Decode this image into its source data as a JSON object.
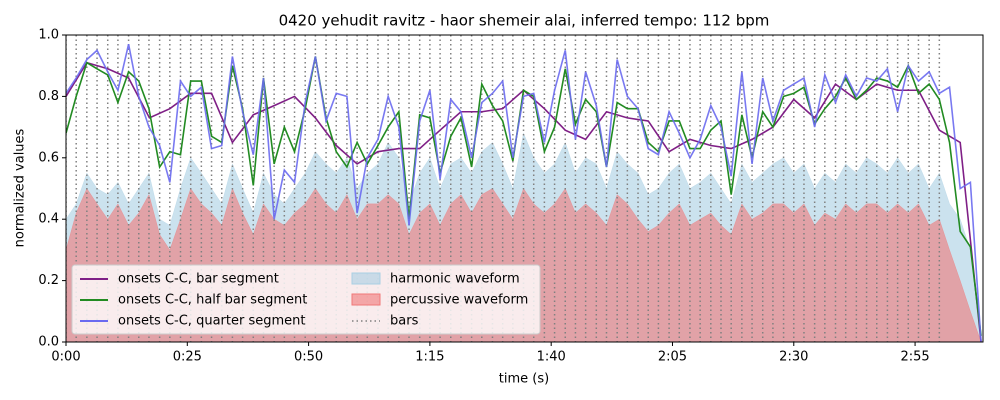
{
  "chart_data": {
    "type": "line",
    "title": "0420 yehudit ravitz - haor shemeir alai, inferred tempo: 112 bpm",
    "xlabel": "time (s)",
    "ylabel": "normalized values",
    "xlim": [
      0,
      189
    ],
    "ylim": [
      0,
      1
    ],
    "xticks": [
      {
        "value": 0,
        "label": "0:00"
      },
      {
        "value": 25,
        "label": "0:25"
      },
      {
        "value": 50,
        "label": "0:50"
      },
      {
        "value": 75,
        "label": "1:15"
      },
      {
        "value": 100,
        "label": "1:40"
      },
      {
        "value": 125,
        "label": "2:05"
      },
      {
        "value": 150,
        "label": "2:30"
      },
      {
        "value": 175,
        "label": "2:55"
      }
    ],
    "yticks": [
      {
        "value": 0,
        "label": "0.0"
      },
      0.2,
      0.4,
      0.6,
      0.8,
      {
        "value": 1,
        "label": "1.0"
      }
    ],
    "legend": "lower left",
    "series": [
      {
        "name": "onsets C-C, bar segment",
        "kind": "line",
        "color": "#7f1f86",
        "x": [
          0,
          4.3,
          8.6,
          12.9,
          17.2,
          21.4,
          25.7,
          30,
          34.3,
          38.6,
          42.9,
          47.1,
          51.4,
          55.7,
          60,
          64.3,
          68.6,
          72.9,
          77.1,
          81.4,
          85.7,
          90,
          94.3,
          98.6,
          102.9,
          107.1,
          111.4,
          115.7,
          120,
          124.3,
          128.6,
          132.9,
          137.1,
          141.4,
          145.7,
          150,
          154.3,
          158.6,
          162.9,
          167.1,
          171.4,
          175.7,
          180,
          184.3,
          188.6
        ],
        "values": [
          0.8,
          0.91,
          0.89,
          0.86,
          0.73,
          0.76,
          0.81,
          0.81,
          0.65,
          0.74,
          0.77,
          0.8,
          0.73,
          0.64,
          0.58,
          0.62,
          0.63,
          0.63,
          0.69,
          0.75,
          0.75,
          0.76,
          0.82,
          0.76,
          0.69,
          0.66,
          0.75,
          0.73,
          0.72,
          0.62,
          0.66,
          0.64,
          0.63,
          0.66,
          0.7,
          0.79,
          0.73,
          0.84,
          0.79,
          0.84,
          0.82,
          0.82,
          0.69,
          0.65,
          0.0
        ]
      },
      {
        "name": "onsets C-C, half bar segment",
        "kind": "line",
        "color": "#228b22",
        "x": [
          0,
          2.1,
          4.3,
          6.4,
          8.6,
          10.7,
          12.9,
          15,
          17.1,
          19.3,
          21.4,
          23.6,
          25.7,
          27.9,
          30,
          32.1,
          34.3,
          36.4,
          38.6,
          40.7,
          42.9,
          45,
          47.1,
          49.3,
          51.4,
          53.6,
          55.7,
          57.9,
          60,
          62.1,
          64.3,
          66.4,
          68.6,
          70.7,
          72.9,
          75,
          77.1,
          79.3,
          81.4,
          83.6,
          85.7,
          87.9,
          90,
          92.1,
          94.3,
          96.4,
          98.6,
          100.7,
          102.9,
          105,
          107.1,
          109.3,
          111.4,
          113.6,
          115.7,
          117.9,
          120,
          122.1,
          124.3,
          126.4,
          128.6,
          130.7,
          132.9,
          135,
          137.1,
          139.3,
          141.4,
          143.6,
          145.7,
          147.9,
          150,
          152.1,
          154.3,
          156.4,
          158.6,
          160.7,
          162.9,
          165,
          167.1,
          169.3,
          171.4,
          173.6,
          175.7,
          177.9,
          180,
          182.1,
          184.3,
          186.4,
          188.6
        ],
        "values": [
          0.68,
          0.8,
          0.91,
          0.89,
          0.87,
          0.78,
          0.88,
          0.85,
          0.76,
          0.57,
          0.62,
          0.61,
          0.85,
          0.85,
          0.67,
          0.65,
          0.9,
          0.76,
          0.51,
          0.86,
          0.58,
          0.7,
          0.62,
          0.76,
          0.93,
          0.73,
          0.62,
          0.57,
          0.65,
          0.58,
          0.64,
          0.7,
          0.75,
          0.4,
          0.74,
          0.73,
          0.55,
          0.67,
          0.73,
          0.57,
          0.84,
          0.77,
          0.72,
          0.59,
          0.82,
          0.8,
          0.62,
          0.7,
          0.89,
          0.71,
          0.79,
          0.75,
          0.57,
          0.78,
          0.76,
          0.76,
          0.65,
          0.62,
          0.72,
          0.72,
          0.63,
          0.63,
          0.69,
          0.72,
          0.48,
          0.74,
          0.6,
          0.75,
          0.7,
          0.8,
          0.81,
          0.83,
          0.71,
          0.76,
          0.8,
          0.86,
          0.79,
          0.82,
          0.86,
          0.85,
          0.83,
          0.9,
          0.81,
          0.84,
          0.79,
          0.65,
          0.36,
          0.31,
          0.02
        ]
      },
      {
        "name": "onsets C-C, quarter segment",
        "kind": "line",
        "color": "#6a6af0",
        "x": [
          0,
          2.1,
          4.3,
          6.4,
          8.6,
          10.7,
          12.9,
          15,
          17.1,
          19.3,
          21.4,
          23.6,
          25.7,
          27.9,
          30,
          32.1,
          34.3,
          36.4,
          38.6,
          40.7,
          42.9,
          45,
          47.1,
          49.3,
          51.4,
          53.6,
          55.7,
          57.9,
          60,
          62.1,
          64.3,
          66.4,
          68.6,
          70.7,
          72.9,
          75,
          77.1,
          79.3,
          81.4,
          83.6,
          85.7,
          87.9,
          90,
          92.1,
          94.3,
          96.4,
          98.6,
          100.7,
          102.9,
          105,
          107.1,
          109.3,
          111.4,
          113.6,
          115.7,
          117.9,
          120,
          122.1,
          124.3,
          126.4,
          128.6,
          130.7,
          132.9,
          135,
          137.1,
          139.3,
          141.4,
          143.6,
          145.7,
          147.9,
          150,
          152.1,
          154.3,
          156.4,
          158.6,
          160.7,
          162.9,
          165,
          167.1,
          169.3,
          171.4,
          173.6,
          175.7,
          177.9,
          180,
          182.1,
          184.3,
          186.4,
          188.6
        ],
        "values": [
          0.81,
          0.86,
          0.92,
          0.95,
          0.88,
          0.82,
          0.97,
          0.8,
          0.7,
          0.64,
          0.52,
          0.85,
          0.8,
          0.83,
          0.63,
          0.64,
          0.93,
          0.75,
          0.61,
          0.86,
          0.4,
          0.56,
          0.52,
          0.78,
          0.93,
          0.72,
          0.81,
          0.8,
          0.42,
          0.6,
          0.66,
          0.8,
          0.7,
          0.38,
          0.72,
          0.82,
          0.53,
          0.79,
          0.75,
          0.6,
          0.78,
          0.81,
          0.85,
          0.6,
          0.8,
          0.81,
          0.65,
          0.82,
          0.95,
          0.66,
          0.88,
          0.77,
          0.57,
          0.92,
          0.8,
          0.76,
          0.63,
          0.61,
          0.75,
          0.68,
          0.6,
          0.66,
          0.77,
          0.7,
          0.54,
          0.88,
          0.58,
          0.86,
          0.72,
          0.82,
          0.84,
          0.86,
          0.7,
          0.87,
          0.78,
          0.87,
          0.8,
          0.86,
          0.85,
          0.89,
          0.75,
          0.9,
          0.85,
          0.88,
          0.81,
          0.83,
          0.5,
          0.52,
          0.0
        ]
      },
      {
        "name": "harmonic waveform",
        "kind": "area",
        "color": "#a9cfe3",
        "x": [
          0,
          2.1,
          4.3,
          6.4,
          8.6,
          10.7,
          12.9,
          15,
          17.1,
          19.3,
          21.4,
          23.6,
          25.7,
          27.9,
          30,
          32.1,
          34.3,
          36.4,
          38.6,
          40.7,
          42.9,
          45,
          47.1,
          49.3,
          51.4,
          53.6,
          55.7,
          57.9,
          60,
          62.1,
          64.3,
          66.4,
          68.6,
          70.7,
          72.9,
          75,
          77.1,
          79.3,
          81.4,
          83.6,
          85.7,
          87.9,
          90,
          92.1,
          94.3,
          96.4,
          98.6,
          100.7,
          102.9,
          105,
          107.1,
          109.3,
          111.4,
          113.6,
          115.7,
          117.9,
          120,
          122.1,
          124.3,
          126.4,
          128.6,
          130.7,
          132.9,
          135,
          137.1,
          139.3,
          141.4,
          143.6,
          145.7,
          147.9,
          150,
          152.1,
          154.3,
          156.4,
          158.6,
          160.7,
          162.9,
          165,
          167.1,
          169.3,
          171.4,
          173.6,
          175.7,
          177.9,
          180,
          182.1,
          184.3,
          186.4,
          188.6
        ],
        "values": [
          0.4,
          0.45,
          0.55,
          0.5,
          0.48,
          0.52,
          0.45,
          0.5,
          0.55,
          0.4,
          0.38,
          0.5,
          0.6,
          0.55,
          0.5,
          0.45,
          0.58,
          0.5,
          0.42,
          0.55,
          0.48,
          0.45,
          0.5,
          0.55,
          0.62,
          0.58,
          0.55,
          0.6,
          0.5,
          0.55,
          0.58,
          0.65,
          0.6,
          0.45,
          0.55,
          0.6,
          0.5,
          0.58,
          0.6,
          0.55,
          0.62,
          0.65,
          0.58,
          0.5,
          0.68,
          0.6,
          0.55,
          0.58,
          0.65,
          0.55,
          0.6,
          0.58,
          0.5,
          0.62,
          0.58,
          0.55,
          0.48,
          0.5,
          0.55,
          0.58,
          0.5,
          0.52,
          0.55,
          0.5,
          0.45,
          0.58,
          0.52,
          0.55,
          0.58,
          0.6,
          0.55,
          0.58,
          0.5,
          0.55,
          0.52,
          0.58,
          0.55,
          0.6,
          0.58,
          0.55,
          0.6,
          0.55,
          0.58,
          0.5,
          0.55,
          0.45,
          0.4,
          0.3,
          0.0
        ]
      },
      {
        "name": "percussive waveform",
        "kind": "area",
        "color": "#f07878",
        "x": [
          0,
          2.1,
          4.3,
          6.4,
          8.6,
          10.7,
          12.9,
          15,
          17.1,
          19.3,
          21.4,
          23.6,
          25.7,
          27.9,
          30,
          32.1,
          34.3,
          36.4,
          38.6,
          40.7,
          42.9,
          45,
          47.1,
          49.3,
          51.4,
          53.6,
          55.7,
          57.9,
          60,
          62.1,
          64.3,
          66.4,
          68.6,
          70.7,
          72.9,
          75,
          77.1,
          79.3,
          81.4,
          83.6,
          85.7,
          87.9,
          90,
          92.1,
          94.3,
          96.4,
          98.6,
          100.7,
          102.9,
          105,
          107.1,
          109.3,
          111.4,
          113.6,
          115.7,
          117.9,
          120,
          122.1,
          124.3,
          126.4,
          128.6,
          130.7,
          132.9,
          135,
          137.1,
          139.3,
          141.4,
          143.6,
          145.7,
          147.9,
          150,
          152.1,
          154.3,
          156.4,
          158.6,
          160.7,
          162.9,
          165,
          167.1,
          169.3,
          171.4,
          173.6,
          175.7,
          177.9,
          180,
          182.1,
          184.3,
          186.4,
          188.6
        ],
        "values": [
          0.3,
          0.42,
          0.5,
          0.45,
          0.4,
          0.45,
          0.38,
          0.42,
          0.48,
          0.35,
          0.3,
          0.4,
          0.5,
          0.45,
          0.42,
          0.38,
          0.5,
          0.42,
          0.35,
          0.45,
          0.4,
          0.38,
          0.42,
          0.45,
          0.5,
          0.45,
          0.42,
          0.48,
          0.4,
          0.45,
          0.45,
          0.48,
          0.45,
          0.35,
          0.42,
          0.45,
          0.38,
          0.45,
          0.48,
          0.42,
          0.48,
          0.5,
          0.45,
          0.4,
          0.5,
          0.45,
          0.42,
          0.45,
          0.5,
          0.42,
          0.45,
          0.42,
          0.38,
          0.48,
          0.45,
          0.4,
          0.36,
          0.38,
          0.42,
          0.45,
          0.38,
          0.4,
          0.42,
          0.38,
          0.35,
          0.45,
          0.4,
          0.42,
          0.45,
          0.45,
          0.42,
          0.45,
          0.38,
          0.42,
          0.4,
          0.45,
          0.42,
          0.45,
          0.45,
          0.42,
          0.45,
          0.42,
          0.45,
          0.38,
          0.4,
          0.3,
          0.2,
          0.1,
          0.0
        ]
      },
      {
        "name": "bars",
        "kind": "vline",
        "color": "#808080",
        "x": [
          0,
          2.1,
          4.3,
          6.4,
          8.6,
          10.7,
          12.9,
          15,
          17.1,
          19.3,
          21.4,
          23.6,
          25.7,
          27.9,
          30,
          32.1,
          34.3,
          36.4,
          38.6,
          40.7,
          42.9,
          45,
          47.1,
          49.3,
          51.4,
          53.6,
          55.7,
          57.9,
          60,
          62.1,
          64.3,
          66.4,
          68.6,
          70.7,
          72.9,
          75,
          77.1,
          79.3,
          81.4,
          83.6,
          85.7,
          87.9,
          90,
          92.1,
          94.3,
          96.4,
          98.6,
          100.7,
          102.9,
          105,
          107.1,
          109.3,
          111.4,
          113.6,
          115.7,
          117.9,
          120,
          122.1,
          124.3,
          126.4,
          128.6,
          130.7,
          132.9,
          135,
          137.1,
          139.3,
          141.4,
          143.6,
          145.7,
          147.9,
          150,
          152.1,
          154.3,
          156.4,
          158.6,
          160.7,
          162.9,
          165,
          167.1,
          169.3,
          171.4,
          173.6,
          175.7,
          177.9,
          180
        ]
      }
    ]
  }
}
